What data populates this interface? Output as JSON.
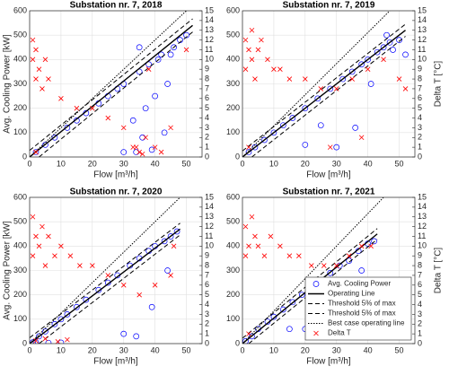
{
  "chart_data": [
    {
      "type": "scatter",
      "title": "Substation nr. 7, 2018",
      "xlabel": "Flow [m³/h]",
      "ylabel": "Avg. Cooling Power [kW]",
      "xlim": [
        0,
        55
      ],
      "ylim": [
        0,
        600
      ],
      "y2lim": [
        0,
        15
      ],
      "xticks": [
        0,
        10,
        20,
        30,
        40,
        50
      ],
      "yticks": [
        0,
        100,
        200,
        300,
        400,
        500,
        600
      ],
      "y2ticks": [
        0,
        1,
        2,
        3,
        4,
        5,
        6,
        7,
        8,
        9,
        10,
        11,
        12,
        13,
        14,
        15
      ],
      "grid": true,
      "series": [
        {
          "color": "#0000ff",
          "marker": "o",
          "x": [
            2,
            5,
            8,
            12,
            15,
            18,
            22,
            25,
            28,
            30,
            33,
            35,
            37,
            38,
            40,
            42,
            44,
            46,
            48,
            50,
            34,
            36,
            39,
            41,
            35,
            30,
            43,
            45
          ],
          "values": [
            20,
            50,
            80,
            120,
            150,
            180,
            220,
            250,
            280,
            300,
            150,
            350,
            200,
            380,
            250,
            420,
            300,
            450,
            480,
            500,
            20,
            80,
            30,
            400,
            450,
            20,
            100,
            420
          ]
        },
        {
          "color": "#000000",
          "style": "solid",
          "x": [
            0,
            52
          ],
          "values": [
            0,
            540
          ]
        },
        {
          "color": "#000000",
          "style": "dashed",
          "x": [
            0,
            52
          ],
          "values": [
            27,
            567
          ]
        },
        {
          "color": "#000000",
          "style": "dashed",
          "x": [
            3,
            52
          ],
          "values": [
            0,
            513
          ]
        },
        {
          "color": "#000000",
          "style": "dotted",
          "x": [
            0,
            50
          ],
          "values": [
            0,
            600
          ]
        },
        {
          "color": "#ff0000",
          "marker": "x",
          "axis": "y2",
          "x": [
            1,
            1,
            2,
            2,
            3,
            4,
            6,
            10,
            15,
            20,
            25,
            30,
            33,
            35,
            37,
            40,
            42,
            45,
            34,
            36,
            38,
            2,
            50,
            5
          ],
          "values": [
            10,
            12,
            8,
            11,
            9,
            7,
            8,
            6,
            5,
            5,
            4,
            3,
            1,
            0.5,
            2,
            1,
            0.5,
            3,
            1,
            0.3,
            9,
            0.5,
            11,
            10
          ]
        }
      ]
    },
    {
      "type": "scatter",
      "title": "Substation nr. 7, 2019",
      "xlabel": "Flow [m³/h]",
      "y2label": "Delta T [°C]",
      "xlim": [
        0,
        55
      ],
      "ylim": [
        0,
        600
      ],
      "y2lim": [
        0,
        15
      ],
      "xticks": [
        0,
        10,
        20,
        30,
        40,
        50
      ],
      "yticks": [
        0,
        100,
        200,
        300,
        400,
        500,
        600
      ],
      "y2ticks": [
        0,
        1,
        2,
        3,
        4,
        5,
        6,
        7,
        8,
        9,
        10,
        11,
        12,
        13,
        14,
        15
      ],
      "grid": true,
      "series": [
        {
          "color": "#0000ff",
          "marker": "o",
          "x": [
            2,
            4,
            7,
            10,
            13,
            16,
            20,
            24,
            28,
            32,
            35,
            38,
            40,
            43,
            45,
            47,
            50,
            52,
            20,
            30,
            36,
            41,
            46,
            25,
            48
          ],
          "values": [
            20,
            40,
            70,
            100,
            130,
            160,
            200,
            240,
            280,
            320,
            350,
            380,
            400,
            430,
            450,
            470,
            480,
            420,
            50,
            40,
            120,
            300,
            500,
            130,
            440
          ]
        },
        {
          "color": "#000000",
          "style": "solid",
          "x": [
            0,
            52
          ],
          "values": [
            0,
            520
          ]
        },
        {
          "color": "#000000",
          "style": "dashed",
          "x": [
            0,
            52
          ],
          "values": [
            25,
            545
          ]
        },
        {
          "color": "#000000",
          "style": "dashed",
          "x": [
            3,
            52
          ],
          "values": [
            0,
            495
          ]
        },
        {
          "color": "#000000",
          "style": "dotted",
          "x": [
            0,
            47
          ],
          "values": [
            0,
            600
          ]
        },
        {
          "color": "#ff0000",
          "marker": "x",
          "axis": "y2",
          "x": [
            1,
            1,
            2,
            3,
            3,
            4,
            5,
            6,
            8,
            10,
            12,
            15,
            20,
            25,
            30,
            35,
            40,
            45,
            50,
            2,
            28,
            38,
            52
          ],
          "values": [
            12,
            9,
            11,
            13,
            10,
            8,
            11,
            12,
            10,
            9,
            9,
            8,
            8,
            7,
            7,
            8,
            9,
            10,
            8,
            1,
            1,
            2,
            7
          ]
        }
      ]
    },
    {
      "type": "scatter",
      "title": "Substation nr. 7, 2020",
      "xlabel": "Flow [m³/h]",
      "ylabel": "Avg. Cooling Power [kW]",
      "xlim": [
        0,
        55
      ],
      "ylim": [
        0,
        600
      ],
      "y2lim": [
        0,
        15
      ],
      "xticks": [
        0,
        10,
        20,
        30,
        40,
        50
      ],
      "yticks": [
        0,
        100,
        200,
        300,
        400,
        500,
        600
      ],
      "y2ticks": [
        0,
        1,
        2,
        3,
        4,
        5,
        6,
        7,
        8,
        9,
        10,
        11,
        12,
        13,
        14,
        15
      ],
      "grid": true,
      "series": [
        {
          "color": "#0000ff",
          "marker": "o",
          "x": [
            1,
            3,
            5,
            8,
            10,
            12,
            15,
            18,
            22,
            25,
            28,
            32,
            35,
            38,
            40,
            43,
            45,
            47,
            2,
            6,
            10,
            30,
            34,
            39,
            44
          ],
          "values": [
            5,
            30,
            50,
            80,
            100,
            120,
            150,
            180,
            220,
            250,
            280,
            320,
            350,
            380,
            400,
            420,
            440,
            460,
            5,
            3,
            4,
            40,
            30,
            150,
            300
          ]
        },
        {
          "color": "#000000",
          "style": "solid",
          "x": [
            0,
            48
          ],
          "values": [
            0,
            470
          ]
        },
        {
          "color": "#000000",
          "style": "dashed",
          "x": [
            0,
            48
          ],
          "values": [
            24,
            494
          ]
        },
        {
          "color": "#000000",
          "style": "dashed",
          "x": [
            3,
            48
          ],
          "values": [
            0,
            446
          ]
        },
        {
          "color": "#000000",
          "style": "dotted",
          "x": [
            0,
            48
          ],
          "values": [
            0,
            600
          ]
        },
        {
          "color": "#ff0000",
          "marker": "x",
          "axis": "y2",
          "x": [
            1,
            1,
            2,
            3,
            4,
            5,
            6,
            8,
            10,
            13,
            16,
            20,
            25,
            30,
            35,
            40,
            45,
            2,
            5,
            9,
            12,
            46
          ],
          "values": [
            13,
            9,
            11,
            10,
            12,
            8,
            11,
            9,
            10,
            9,
            8,
            8,
            7,
            6,
            5,
            6,
            7,
            0.3,
            0.5,
            0.2,
            0.4,
            10
          ]
        }
      ]
    },
    {
      "type": "scatter",
      "title": "Substation nr. 7, 2021",
      "xlabel": "Flow [m³/h]",
      "y2label": "Delta T [°C]",
      "xlim": [
        0,
        55
      ],
      "ylim": [
        0,
        600
      ],
      "y2lim": [
        0,
        15
      ],
      "xticks": [
        0,
        10,
        20,
        30,
        40,
        50
      ],
      "yticks": [
        0,
        100,
        200,
        300,
        400,
        500,
        600
      ],
      "y2ticks": [
        0,
        1,
        2,
        3,
        4,
        5,
        6,
        7,
        8,
        9,
        10,
        11,
        12,
        13,
        14,
        15
      ],
      "grid": true,
      "legend": "lower right",
      "series": [
        {
          "name": "Avg. Cooling Power",
          "color": "#0000ff",
          "marker": "o",
          "x": [
            1,
            3,
            5,
            8,
            10,
            13,
            16,
            19,
            22,
            25,
            28,
            31,
            34,
            37,
            40,
            42,
            15,
            20,
            27,
            33,
            38
          ],
          "values": [
            10,
            30,
            60,
            90,
            110,
            140,
            170,
            200,
            230,
            260,
            290,
            320,
            340,
            380,
            410,
            420,
            60,
            60,
            150,
            200,
            300
          ]
        },
        {
          "name": "Operating Line",
          "color": "#000000",
          "style": "solid",
          "x": [
            0,
            43
          ],
          "values": [
            0,
            450
          ]
        },
        {
          "name": "Threshold 5% of max",
          "color": "#000000",
          "style": "dashed",
          "x": [
            0,
            43
          ],
          "values": [
            22,
            472
          ]
        },
        {
          "name": "Threshold 5% of max",
          "color": "#000000",
          "style": "dashed",
          "x": [
            2,
            43
          ],
          "values": [
            0,
            428
          ]
        },
        {
          "name": "Best case operating line",
          "color": "#000000",
          "style": "dotted",
          "x": [
            0,
            45
          ],
          "values": [
            0,
            600
          ]
        },
        {
          "name": "Delta T",
          "color": "#ff0000",
          "marker": "x",
          "axis": "y2",
          "x": [
            1,
            1,
            2,
            3,
            4,
            5,
            7,
            9,
            12,
            15,
            18,
            22,
            26,
            30,
            34,
            38,
            41,
            2,
            25
          ],
          "values": [
            12,
            9,
            10,
            13,
            11,
            10,
            9,
            11,
            10,
            9,
            9,
            8,
            8,
            8,
            9,
            10,
            10,
            1,
            3
          ]
        }
      ]
    }
  ]
}
